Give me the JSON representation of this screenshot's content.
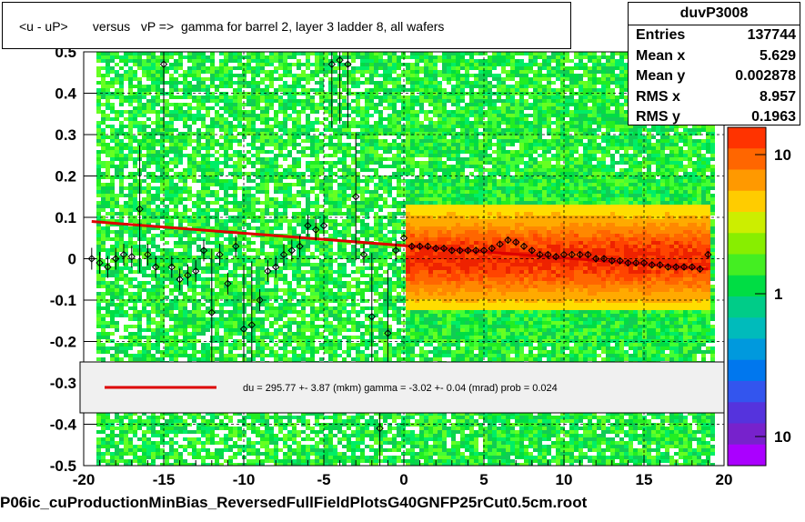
{
  "title": "<u - uP>       versus   vP =>  gamma for barrel 2, layer 3 ladder 8, all wafers",
  "stats": {
    "name": "duvP3008",
    "rows": [
      {
        "label": "Entries",
        "value": "137744"
      },
      {
        "label": "Mean x",
        "value": "5.629"
      },
      {
        "label": "Mean y",
        "value": "0.002878"
      },
      {
        "label": "RMS x",
        "value": "8.957"
      },
      {
        "label": "RMS y",
        "value": "0.1963"
      }
    ]
  },
  "legend_text": "du =  295.77 +-  3.87 (mkm) gamma =   -3.02 +-  0.04 (mrad) prob = 0.024",
  "footer": "P06ic_cuProductionMinBias_ReversedFullFieldPlotsG40GNFP25rCut0.5cm.root",
  "colors": {
    "fit_line": "#dd0000",
    "marker": "#000000"
  },
  "chart_data": {
    "type": "heatmap",
    "xlim": [
      -20,
      20
    ],
    "ylim": [
      -0.5,
      0.5
    ],
    "x_ticks": [
      "-20",
      "-15",
      "-10",
      "-5",
      "0",
      "5",
      "10",
      "15",
      "20"
    ],
    "y_ticks": [
      "-0.5",
      "-0.4",
      "-0.3",
      "-0.2",
      "-0.1",
      "0",
      "0.1",
      "0.2",
      "0.3",
      "0.4",
      "0.5"
    ],
    "colorbar_ticks": [
      "10",
      "1",
      "10"
    ],
    "grid": true,
    "fit_line": {
      "x": [
        -19.5,
        19
      ],
      "y": [
        0.09,
        -0.025
      ]
    },
    "profile": {
      "x": [
        -19.5,
        -19,
        -18.5,
        -18,
        -17.5,
        -17,
        -16.5,
        -16,
        -15.5,
        -15,
        -14.5,
        -14,
        -13.5,
        -13,
        -12.5,
        -12,
        -11.5,
        -11,
        -10.5,
        -10,
        -9.5,
        -9,
        -8.5,
        -8,
        -7.5,
        -7,
        -6.5,
        -6,
        -5.5,
        -5,
        -4.5,
        -4,
        -3.5,
        -3,
        -2.5,
        -2,
        -1.5,
        -1,
        -0.5,
        0,
        0.5,
        1,
        1.5,
        2,
        2.5,
        3,
        3.5,
        4,
        4.5,
        5,
        5.5,
        6,
        6.5,
        7,
        7.5,
        8,
        8.5,
        9,
        9.5,
        10,
        10.5,
        11,
        11.5,
        12,
        12.5,
        13,
        13.5,
        14,
        14.5,
        15,
        15.5,
        16,
        16.5,
        17,
        17.5,
        18,
        18.5,
        19
      ],
      "y": [
        0,
        -0.01,
        -0.02,
        0,
        0.01,
        0.005,
        0.12,
        0.01,
        -0.02,
        0.47,
        -0.02,
        -0.05,
        -0.04,
        -0.03,
        0.02,
        -0.13,
        0.01,
        -0.06,
        0.03,
        -0.17,
        -0.16,
        -0.1,
        -0.03,
        -0.02,
        0.01,
        0.02,
        0.03,
        0.08,
        0.07,
        0.08,
        0.47,
        0.48,
        0.47,
        0.15,
        0.01,
        -0.14,
        -0.41,
        -0.18,
        0.02,
        0.05,
        0.03,
        0.03,
        0.03,
        0.025,
        0.025,
        0.02,
        0.02,
        0.02,
        0.02,
        0.02,
        0.025,
        0.035,
        0.045,
        0.04,
        0.03,
        0.02,
        0.01,
        0.01,
        0.005,
        0.01,
        0.01,
        0.01,
        0.01,
        0,
        0,
        -0.005,
        -0.005,
        -0.01,
        -0.01,
        -0.01,
        -0.015,
        -0.015,
        -0.02,
        -0.02,
        -0.02,
        -0.02,
        -0.025,
        0.01
      ]
    }
  }
}
